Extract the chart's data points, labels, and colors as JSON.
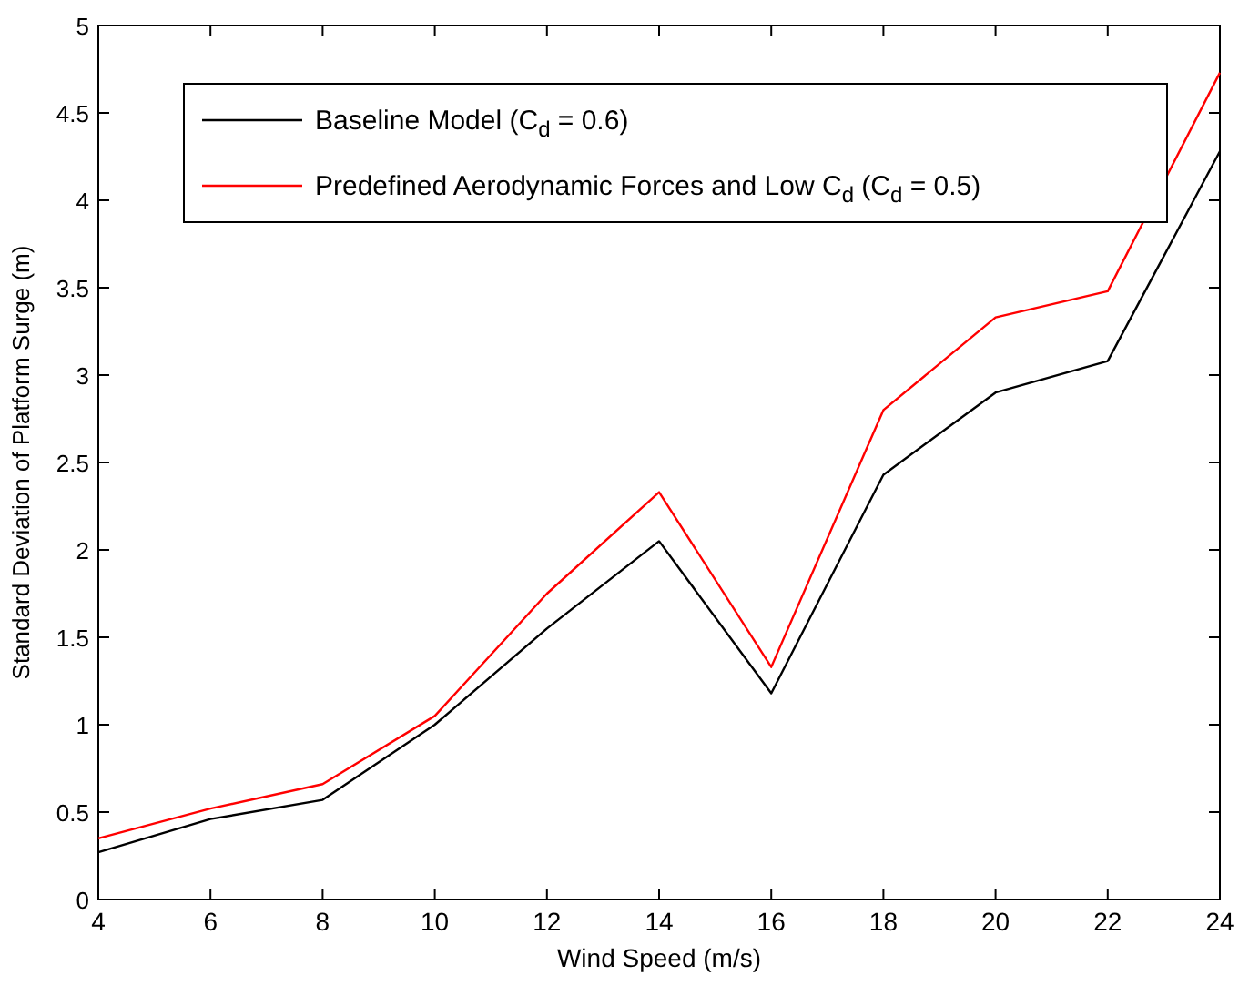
{
  "chart_data": {
    "type": "line",
    "xlabel": "Wind Speed (m/s)",
    "ylabel": "Standard Deviation of Platform Surge (m)",
    "x": [
      4,
      6,
      8,
      10,
      12,
      14,
      16,
      18,
      20,
      22,
      24
    ],
    "series": [
      {
        "name": "Baseline Model (C$_{d}$ = 0.6)",
        "color": "#000000",
        "values": [
          0.27,
          0.46,
          0.57,
          1.0,
          1.55,
          2.05,
          1.18,
          2.43,
          2.9,
          3.08,
          4.28
        ]
      },
      {
        "name": "Predefined Aerodynamic Forces and Low C$_{d}$ (C$_{d}$ = 0.5)",
        "color": "#ff0000",
        "values": [
          0.35,
          0.52,
          0.66,
          1.05,
          1.75,
          2.33,
          1.33,
          2.8,
          3.33,
          3.48,
          4.73
        ]
      }
    ],
    "xlim": [
      4,
      24
    ],
    "xticks": [
      4,
      6,
      8,
      10,
      12,
      14,
      16,
      18,
      20,
      22,
      24
    ],
    "ylim": [
      0,
      5
    ],
    "yticks": [
      0,
      0.5,
      1,
      1.5,
      2,
      2.5,
      3,
      3.5,
      4,
      4.5,
      5
    ],
    "legend": "top left",
    "grid": false,
    "marker": "none",
    "line_style": "solid"
  }
}
